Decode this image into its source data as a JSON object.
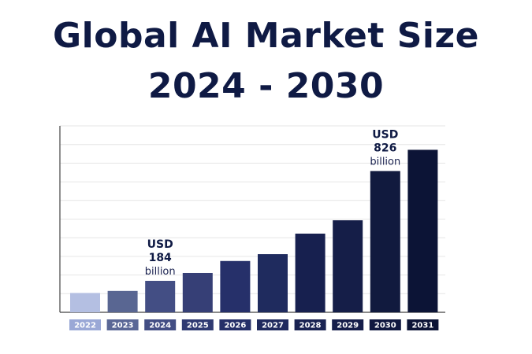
{
  "header": {
    "title_line1": "Global AI Market Size",
    "title_line2": "2024 - 2030"
  },
  "chart_data": {
    "type": "bar",
    "title": "Global AI Market Size 2024 - 2030",
    "categories": [
      "2022",
      "2023",
      "2024",
      "2025",
      "2026",
      "2027",
      "2028",
      "2029",
      "2030",
      "2031"
    ],
    "values": [
      113,
      125,
      184,
      230,
      300,
      340,
      460,
      538,
      826,
      950
    ],
    "ylim": [
      0,
      1090
    ],
    "grid": true,
    "annotations": [
      {
        "category": "2024",
        "line1": "USD",
        "line2": "184",
        "line3": "billion"
      },
      {
        "category": "2030",
        "line1": "USD",
        "line2": "826",
        "line3": "billion"
      }
    ],
    "colors": [
      "#b4bfe2",
      "#596692",
      "#434e84",
      "#363f76",
      "#26306a",
      "#1f2b5e",
      "#17204f",
      "#151e48",
      "#111a3e",
      "#0c1436"
    ],
    "label_colors": [
      "#9aa8d6",
      "#5a6796",
      "#434e84",
      "#2f3a72",
      "#252f68",
      "#202a5e",
      "#1a2352",
      "#151d4a",
      "#101840",
      "#0c1436"
    ]
  }
}
